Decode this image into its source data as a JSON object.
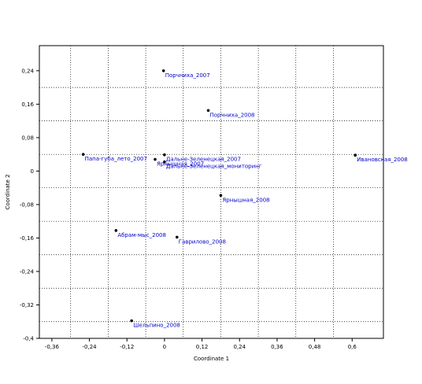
{
  "chart_data": {
    "type": "scatter",
    "xlabel": "Coordinate 1",
    "ylabel": "Coordinate 2",
    "xlim": [
      -0.4,
      0.7
    ],
    "ylim": [
      -0.4,
      0.3
    ],
    "x_ticks": [
      -0.36,
      -0.24,
      -0.12,
      0,
      0.12,
      0.24,
      0.36,
      0.48,
      0.6
    ],
    "x_tick_labels": [
      "-0,36",
      "-0,24",
      "-0,12",
      "0",
      "0,12",
      "0,24",
      "0,36",
      "0,48",
      "0,6"
    ],
    "y_ticks": [
      0.24,
      0.16,
      0.08,
      0,
      -0.08,
      -0.16,
      -0.24,
      -0.32,
      -0.4
    ],
    "y_tick_labels": [
      "0,24",
      "0,16",
      "0,08",
      "0",
      "-0,08",
      "-0,16",
      "-0,24",
      "-0,32",
      "-0,4"
    ],
    "grid": true,
    "point_color": "#000000",
    "label_color": "#0000cc",
    "points": [
      {
        "label": "Порчниха_2007",
        "x": -0.003,
        "y": 0.24
      },
      {
        "label": "Порчниха_2008",
        "x": 0.14,
        "y": 0.145
      },
      {
        "label": "Папа-губа_лето_2007",
        "x": -0.26,
        "y": 0.04
      },
      {
        "label": "Дальне-Зеленецкая_2007",
        "x": 0.0,
        "y": 0.039
      },
      {
        "label": "Ярнышная_2007",
        "x": -0.03,
        "y": 0.028
      },
      {
        "label": "Дальне-Зеленецкая_мониторинг",
        "x": 0.0,
        "y": 0.022
      },
      {
        "label": "Ивановская_2008",
        "x": 0.61,
        "y": 0.038
      },
      {
        "label": "Ярнышная_2008",
        "x": 0.18,
        "y": -0.058
      },
      {
        "label": "Абрам-мыс_2008",
        "x": -0.155,
        "y": -0.142
      },
      {
        "label": "Гаврилово_2008",
        "x": 0.04,
        "y": -0.158
      },
      {
        "label": "Шельпино_2008",
        "x": -0.105,
        "y": -0.358
      }
    ]
  }
}
